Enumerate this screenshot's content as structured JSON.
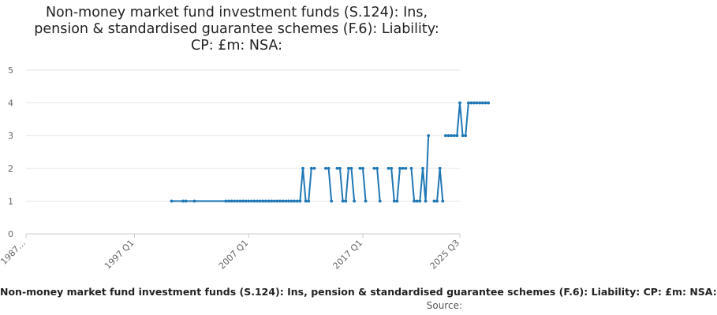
{
  "chart_data": {
    "type": "line",
    "title_lines": [
      "Non-money market fund investment funds (S.124): Ins,",
      "pension & standardised guarantee schemes (F.6): Liability:",
      "CP: £m: NSA:"
    ],
    "legend_label": "Non-money market fund investment funds (S.124): Ins, pension & standardised guarantee schemes (F.6): Liability: CP: £m: NSA:",
    "source_label": "Source:",
    "ylim": [
      0,
      5
    ],
    "yticks": [
      0,
      1,
      2,
      3,
      4,
      5
    ],
    "xlim": [
      "1987 Q3",
      "2025 Q3"
    ],
    "xtick_labels": [
      "1987…",
      "1997 Q1",
      "2007 Q1",
      "2017 Q1",
      "2025 Q3"
    ],
    "grid": true,
    "color": "#1f77b4",
    "series": [
      {
        "values": [
          [
            "2000 Q2",
            1
          ],
          [
            "2001 Q2",
            1
          ],
          [
            "2001 Q3",
            1
          ],
          [
            "2002 Q2",
            1
          ],
          [
            "2005 Q1",
            1
          ],
          [
            "2005 Q2",
            1
          ],
          [
            "2005 Q3",
            1
          ],
          [
            "2005 Q4",
            1
          ],
          [
            "2006 Q1",
            1
          ],
          [
            "2006 Q2",
            1
          ],
          [
            "2006 Q3",
            1
          ],
          [
            "2006 Q4",
            1
          ],
          [
            "2007 Q1",
            1
          ],
          [
            "2007 Q2",
            1
          ],
          [
            "2007 Q3",
            1
          ],
          [
            "2007 Q4",
            1
          ],
          [
            "2008 Q1",
            1
          ],
          [
            "2008 Q2",
            1
          ],
          [
            "2008 Q3",
            1
          ],
          [
            "2008 Q4",
            1
          ],
          [
            "2009 Q1",
            1
          ],
          [
            "2009 Q2",
            1
          ],
          [
            "2009 Q3",
            1
          ],
          [
            "2009 Q4",
            1
          ],
          [
            "2010 Q1",
            1
          ],
          [
            "2010 Q2",
            1
          ],
          [
            "2010 Q3",
            1
          ],
          [
            "2010 Q4",
            1
          ],
          [
            "2011 Q1",
            1
          ],
          [
            "2011 Q2",
            1
          ],
          [
            "2011 Q3",
            1
          ],
          [
            "2011 Q4",
            2
          ],
          [
            "2012 Q1",
            1
          ],
          [
            "2012 Q2",
            1
          ],
          [
            "2012 Q3",
            2
          ],
          [
            "2012 Q4",
            2
          ],
          null,
          [
            "2013 Q4",
            2
          ],
          [
            "2014 Q1",
            2
          ],
          [
            "2014 Q2",
            1
          ],
          null,
          [
            "2014 Q4",
            2
          ],
          [
            "2015 Q1",
            2
          ],
          [
            "2015 Q2",
            1
          ],
          [
            "2015 Q3",
            1
          ],
          [
            "2015 Q4",
            2
          ],
          [
            "2016 Q1",
            2
          ],
          [
            "2016 Q2",
            1
          ],
          null,
          [
            "2016 Q4",
            2
          ],
          [
            "2017 Q1",
            2
          ],
          [
            "2017 Q2",
            1
          ],
          null,
          [
            "2018 Q1",
            2
          ],
          [
            "2018 Q2",
            2
          ],
          [
            "2018 Q3",
            1
          ],
          null,
          [
            "2019 Q2",
            2
          ],
          [
            "2019 Q3",
            2
          ],
          [
            "2019 Q4",
            1
          ],
          [
            "2020 Q1",
            1
          ],
          [
            "2020 Q2",
            2
          ],
          [
            "2020 Q3",
            2
          ],
          [
            "2020 Q4",
            2
          ],
          null,
          [
            "2021 Q2",
            2
          ],
          [
            "2021 Q3",
            1
          ],
          [
            "2021 Q4",
            1
          ],
          [
            "2022 Q1",
            1
          ],
          [
            "2022 Q2",
            2
          ],
          [
            "2022 Q3",
            1
          ],
          [
            "2022 Q4",
            3
          ],
          null,
          [
            "2023 Q2",
            1
          ],
          [
            "2023 Q3",
            1
          ],
          [
            "2023 Q4",
            2
          ],
          [
            "2024 Q1",
            1
          ],
          null,
          [
            "2024 Q2",
            3
          ],
          [
            "2024 Q3",
            3
          ],
          [
            "2024 Q4",
            3
          ],
          [
            "2025 Q1",
            3
          ],
          [
            "2025 Q2",
            3
          ],
          [
            "2025 Q3",
            4
          ],
          [
            "2025 Q4",
            3
          ],
          [
            "2026 Q1",
            3
          ],
          [
            "2026 Q2",
            4
          ],
          [
            "2026 Q3",
            4
          ],
          [
            "2026 Q4",
            4
          ],
          [
            "2027 Q1",
            4
          ],
          [
            "2027 Q2",
            4
          ],
          [
            "2027 Q3",
            4
          ],
          [
            "2027 Q4",
            4
          ],
          [
            "2028 Q1",
            4
          ]
        ]
      }
    ]
  }
}
